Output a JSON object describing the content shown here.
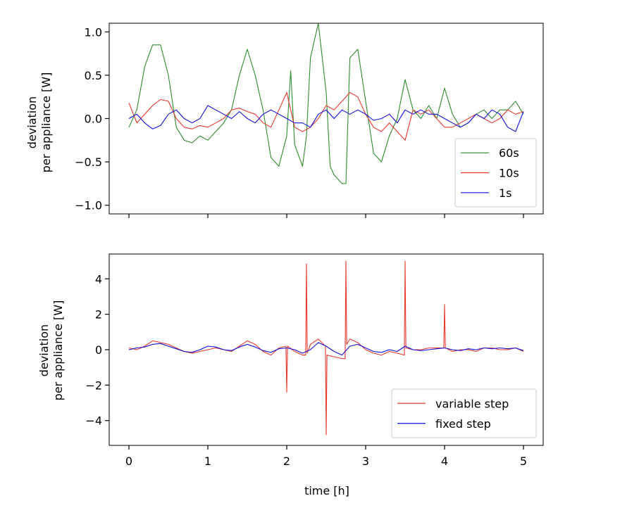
{
  "chart_data": [
    {
      "type": "line",
      "panel": "top",
      "ylabel_lines": [
        "deviation",
        "per appliance [W]"
      ],
      "xlabel": "",
      "xlim": [
        -0.25,
        5.25
      ],
      "ylim": [
        -1.1,
        1.1
      ],
      "xticks": [
        0,
        1,
        2,
        3,
        4,
        5
      ],
      "show_xtick_labels": false,
      "yticks": [
        -1.0,
        -0.5,
        0.0,
        0.5,
        1.0
      ],
      "ytick_labels": [
        "−1.0",
        "−0.5",
        "0.0",
        "0.5",
        "1.0"
      ],
      "legend_position": "lower-right",
      "series": [
        {
          "name": "60s",
          "color": "#2e8b2e",
          "x": [
            0,
            0.1,
            0.2,
            0.3,
            0.4,
            0.5,
            0.6,
            0.7,
            0.8,
            0.9,
            1.0,
            1.1,
            1.2,
            1.3,
            1.4,
            1.5,
            1.6,
            1.7,
            1.8,
            1.9,
            2.0,
            2.05,
            2.1,
            2.2,
            2.25,
            2.3,
            2.4,
            2.5,
            2.55,
            2.6,
            2.7,
            2.75,
            2.8,
            2.9,
            3.0,
            3.1,
            3.2,
            3.3,
            3.4,
            3.5,
            3.6,
            3.7,
            3.8,
            3.9,
            4.0,
            4.1,
            4.2,
            4.3,
            4.4,
            4.5,
            4.6,
            4.7,
            4.8,
            4.9,
            5.0
          ],
          "values": [
            -0.1,
            0.1,
            0.6,
            0.85,
            0.85,
            0.5,
            -0.1,
            -0.25,
            -0.28,
            -0.2,
            -0.25,
            -0.15,
            -0.05,
            0.1,
            0.5,
            0.8,
            0.5,
            0.1,
            -0.45,
            -0.55,
            -0.2,
            0.55,
            -0.3,
            -0.55,
            -0.2,
            0.7,
            1.1,
            0.3,
            -0.55,
            -0.65,
            -0.75,
            -0.75,
            0.7,
            0.8,
            0.2,
            -0.4,
            -0.5,
            -0.2,
            0.0,
            0.45,
            0.1,
            0.0,
            0.15,
            0.0,
            0.35,
            0.05,
            -0.1,
            -0.05,
            0.05,
            0.1,
            0.0,
            0.1,
            0.1,
            0.2,
            0.05
          ]
        },
        {
          "name": "10s",
          "color": "#e8392b",
          "x": [
            0,
            0.1,
            0.2,
            0.3,
            0.4,
            0.5,
            0.6,
            0.7,
            0.8,
            0.9,
            1.0,
            1.1,
            1.2,
            1.3,
            1.4,
            1.5,
            1.6,
            1.7,
            1.8,
            1.9,
            2.0,
            2.1,
            2.2,
            2.3,
            2.4,
            2.5,
            2.6,
            2.7,
            2.8,
            2.9,
            3.0,
            3.1,
            3.2,
            3.3,
            3.4,
            3.5,
            3.6,
            3.7,
            3.8,
            3.9,
            4.0,
            4.1,
            4.2,
            4.3,
            4.4,
            4.5,
            4.6,
            4.7,
            4.8,
            4.9,
            5.0
          ],
          "values": [
            0.18,
            -0.05,
            0.05,
            0.15,
            0.22,
            0.2,
            0.0,
            -0.1,
            -0.12,
            -0.08,
            -0.1,
            -0.05,
            0.0,
            0.1,
            0.12,
            0.08,
            0.05,
            -0.05,
            -0.1,
            0.1,
            0.3,
            -0.1,
            -0.15,
            -0.1,
            0.0,
            0.15,
            0.1,
            0.2,
            0.3,
            0.25,
            0.05,
            -0.1,
            -0.15,
            -0.05,
            -0.15,
            -0.25,
            0.1,
            0.05,
            0.1,
            0.0,
            -0.1,
            -0.1,
            -0.05,
            0.0,
            0.05,
            0.0,
            -0.05,
            0.0,
            0.1,
            0.05,
            0.08
          ]
        },
        {
          "name": "1s",
          "color": "#1010e0",
          "x": [
            0,
            0.1,
            0.2,
            0.3,
            0.4,
            0.5,
            0.6,
            0.7,
            0.8,
            0.9,
            1.0,
            1.1,
            1.2,
            1.3,
            1.4,
            1.5,
            1.6,
            1.7,
            1.8,
            1.9,
            2.0,
            2.1,
            2.2,
            2.3,
            2.4,
            2.5,
            2.6,
            2.7,
            2.8,
            2.9,
            3.0,
            3.1,
            3.2,
            3.3,
            3.4,
            3.5,
            3.6,
            3.7,
            3.8,
            3.9,
            4.0,
            4.1,
            4.2,
            4.3,
            4.4,
            4.5,
            4.6,
            4.7,
            4.8,
            4.9,
            5.0
          ],
          "values": [
            0.0,
            0.05,
            -0.05,
            -0.12,
            -0.08,
            0.05,
            0.1,
            0.0,
            -0.05,
            0.0,
            0.15,
            0.1,
            0.05,
            0.0,
            0.08,
            0.0,
            -0.05,
            0.05,
            0.1,
            0.05,
            0.0,
            -0.05,
            -0.05,
            -0.1,
            0.05,
            0.1,
            0.0,
            0.1,
            0.05,
            0.1,
            0.05,
            -0.02,
            0.0,
            0.05,
            -0.05,
            0.1,
            0.05,
            0.1,
            0.05,
            0.05,
            0.0,
            -0.05,
            -0.1,
            -0.05,
            0.05,
            0.0,
            0.1,
            0.05,
            -0.1,
            -0.15,
            0.08
          ]
        }
      ]
    },
    {
      "type": "line",
      "panel": "bottom",
      "ylabel_lines": [
        "deviation",
        "per appliance [W]"
      ],
      "xlabel": "time [h]",
      "xlim": [
        -0.25,
        5.25
      ],
      "ylim": [
        -5.4,
        5.4
      ],
      "xticks": [
        0,
        1,
        2,
        3,
        4,
        5
      ],
      "xtick_labels": [
        "0",
        "1",
        "2",
        "3",
        "4",
        "5"
      ],
      "show_xtick_labels": true,
      "yticks": [
        -4,
        -2,
        0,
        2,
        4
      ],
      "ytick_labels": [
        "−4",
        "−2",
        "0",
        "2",
        "4"
      ],
      "legend_position": "lower-right",
      "series": [
        {
          "name": "variable step",
          "color": "#e8392b",
          "x": [
            0,
            0.1,
            0.2,
            0.3,
            0.4,
            0.5,
            0.6,
            0.7,
            0.8,
            0.9,
            1.0,
            1.1,
            1.2,
            1.3,
            1.4,
            1.5,
            1.6,
            1.7,
            1.8,
            1.9,
            1.99,
            2.0,
            2.01,
            2.1,
            2.2,
            2.24,
            2.25,
            2.26,
            2.3,
            2.4,
            2.49,
            2.5,
            2.51,
            2.6,
            2.7,
            2.74,
            2.75,
            2.76,
            2.8,
            2.9,
            3.0,
            3.1,
            3.2,
            3.3,
            3.4,
            3.49,
            3.5,
            3.51,
            3.6,
            3.7,
            3.8,
            3.9,
            3.99,
            4.0,
            4.01,
            4.1,
            4.2,
            4.3,
            4.4,
            4.5,
            4.6,
            4.7,
            4.8,
            4.9,
            5.0
          ],
          "values": [
            0.1,
            0.0,
            0.2,
            0.5,
            0.4,
            0.3,
            0.1,
            -0.1,
            -0.2,
            -0.1,
            0.0,
            0.1,
            0.0,
            -0.1,
            0.2,
            0.5,
            0.3,
            -0.1,
            -0.3,
            0.1,
            0.2,
            -2.4,
            0.2,
            -0.1,
            -0.3,
            -0.3,
            4.85,
            -0.2,
            0.3,
            0.6,
            0.2,
            -4.8,
            -0.3,
            -0.4,
            -0.5,
            -0.5,
            5.0,
            0.3,
            0.6,
            0.4,
            0.0,
            -0.2,
            -0.3,
            -0.1,
            -0.2,
            -0.3,
            5.0,
            0.1,
            0.0,
            0.0,
            0.1,
            0.1,
            0.1,
            2.55,
            0.1,
            -0.1,
            0.0,
            0.0,
            -0.1,
            0.1,
            0.1,
            0.0,
            0.0,
            0.1,
            -0.1
          ]
        },
        {
          "name": "fixed step",
          "color": "#1010e0",
          "x": [
            0,
            0.1,
            0.2,
            0.3,
            0.4,
            0.5,
            0.6,
            0.7,
            0.8,
            0.9,
            1.0,
            1.1,
            1.2,
            1.3,
            1.4,
            1.5,
            1.6,
            1.7,
            1.8,
            1.9,
            2.0,
            2.1,
            2.2,
            2.3,
            2.4,
            2.5,
            2.6,
            2.7,
            2.8,
            2.9,
            3.0,
            3.1,
            3.2,
            3.3,
            3.4,
            3.5,
            3.6,
            3.7,
            3.8,
            3.9,
            4.0,
            4.1,
            4.2,
            4.3,
            4.4,
            4.5,
            4.6,
            4.7,
            4.8,
            4.9,
            5.0
          ],
          "values": [
            0.0,
            0.1,
            0.15,
            0.3,
            0.35,
            0.2,
            0.05,
            -0.1,
            -0.15,
            0.0,
            0.2,
            0.15,
            0.0,
            -0.05,
            0.15,
            0.3,
            0.15,
            -0.05,
            -0.15,
            0.05,
            0.1,
            0.0,
            -0.2,
            0.0,
            0.4,
            0.2,
            -0.1,
            -0.3,
            0.2,
            0.3,
            0.1,
            -0.1,
            -0.15,
            0.0,
            -0.1,
            0.2,
            0.0,
            -0.05,
            0.0,
            0.05,
            0.1,
            0.0,
            -0.05,
            0.05,
            0.0,
            0.1,
            0.05,
            0.1,
            0.05,
            0.1,
            -0.05
          ]
        }
      ]
    }
  ]
}
